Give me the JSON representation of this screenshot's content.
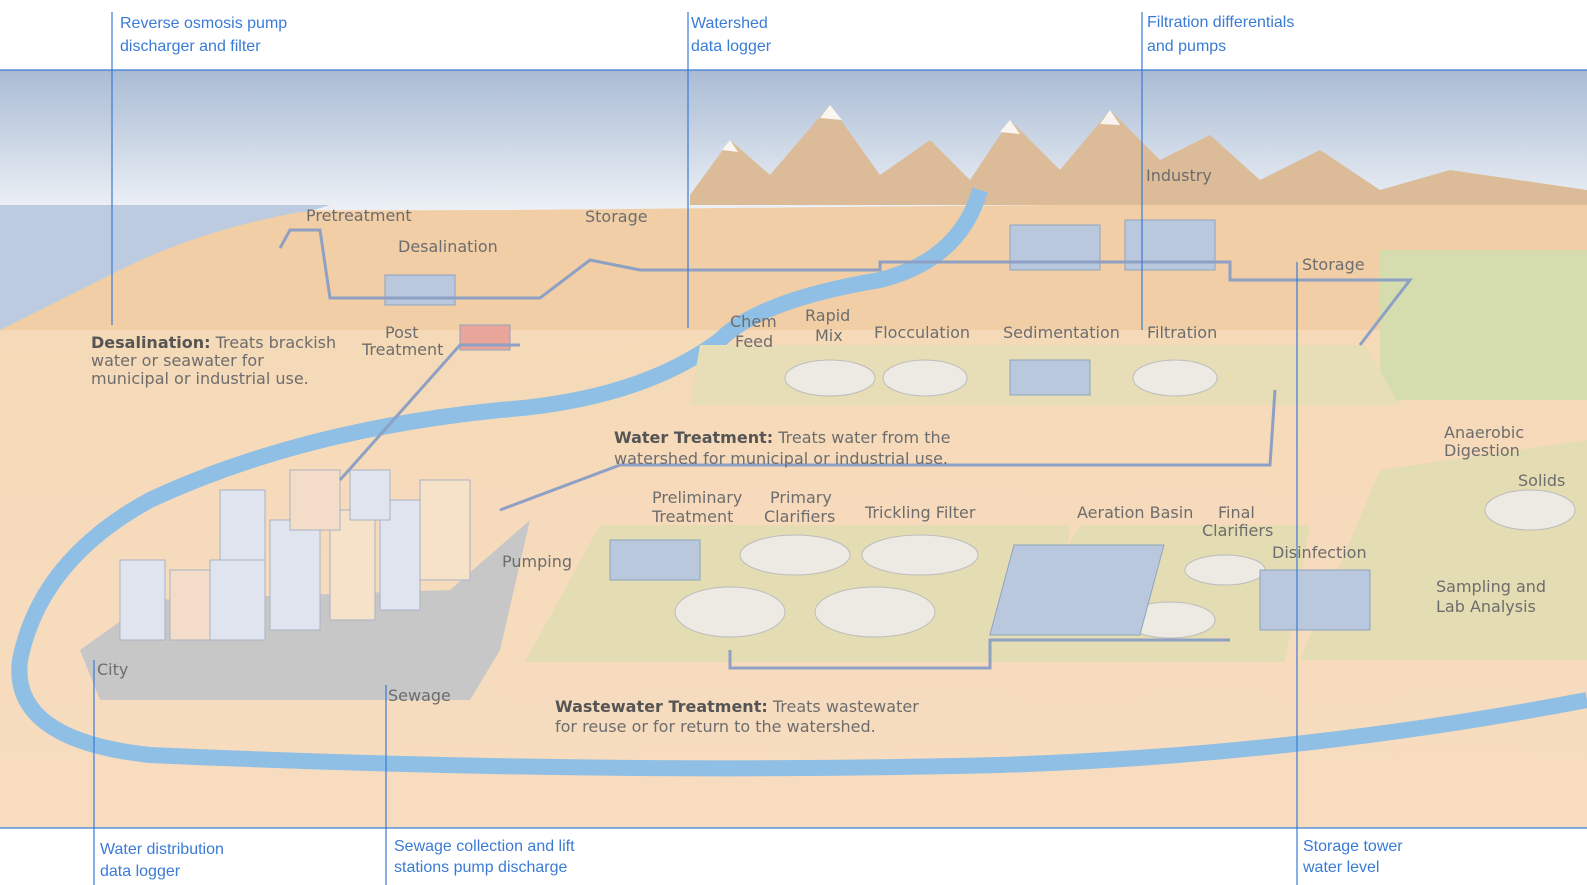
{
  "callouts": {
    "top": [
      {
        "lines": [
          "Reverse osmosis pump",
          "discharger and filter"
        ]
      },
      {
        "lines": [
          "Watershed",
          "data logger"
        ]
      },
      {
        "lines": [
          "Filtration differentials",
          "and pumps"
        ]
      }
    ],
    "bottom": [
      {
        "lines": [
          "Water distribution",
          "data logger"
        ]
      },
      {
        "lines": [
          "Sewage collection and lift",
          "stations pump discharge"
        ]
      },
      {
        "lines": [
          "Storage tower",
          "water level"
        ]
      }
    ]
  },
  "labels": {
    "pretreatment": "Pretreatment",
    "desalination": "Desalination",
    "storage_left": "Storage",
    "post_treatment": [
      "Post",
      "Treatment"
    ],
    "chem_feed": [
      "Chem",
      "Feed"
    ],
    "rapid_mix": [
      "Rapid",
      "Mix"
    ],
    "flocculation": "Flocculation",
    "sedimentation": "Sedimentation",
    "filtration": "Filtration",
    "industry": "Industry",
    "storage_right": "Storage",
    "anaerobic_digestion": [
      "Anaerobic",
      "Digestion"
    ],
    "solids": "Solids",
    "sampling": [
      "Sampling and",
      "Lab Analysis"
    ],
    "preliminary_treatment": [
      "Preliminary",
      "Treatment"
    ],
    "primary_clarifiers": [
      "Primary",
      "Clarifiers"
    ],
    "trickling_filter": "Trickling Filter",
    "aeration_basin": "Aeration Basin",
    "final_clarifiers": [
      "Final",
      "Clarifiers"
    ],
    "disinfection": "Disinfection",
    "pumping": "Pumping",
    "city": "City",
    "sewage": "Sewage"
  },
  "descriptions": {
    "desalination": {
      "bold": "Desalination:",
      "lines": [
        "Treats brackish",
        "water or seawater for",
        "municipal or industrial use."
      ]
    },
    "water_treatment": {
      "bold": "Water Treatment:",
      "lines": [
        "Treats water from the",
        "watershed for municipal or industrial use."
      ]
    },
    "wastewater_treatment": {
      "bold": "Wastewater Treatment:",
      "lines": [
        "Treats wastewater",
        "for reuse or for return to the watershed."
      ]
    }
  }
}
